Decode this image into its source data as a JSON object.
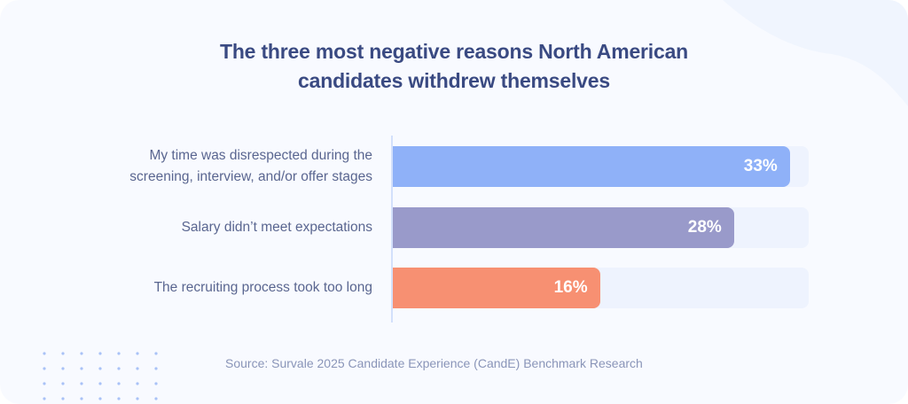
{
  "chart_data": {
    "type": "bar",
    "orientation": "horizontal",
    "title": "The three most negative reasons North American candidates withdrew themselves",
    "title_lines": [
      "The three most negative reasons North American",
      "candidates withdrew themselves"
    ],
    "categories": [
      "My time was disrespected during the screening, interview, and/or offer stages",
      "Salary didn’t meet expectations",
      "The recruiting process took too long"
    ],
    "category_lines": [
      [
        "My time was disrespected during the",
        "screening, interview, and/or offer stages"
      ],
      [
        "Salary didn’t meet expectations"
      ],
      [
        "The recruiting process took too long"
      ]
    ],
    "values": [
      33,
      28,
      16
    ],
    "value_labels": [
      "33%",
      "28%",
      "16%"
    ],
    "unit": "%",
    "colors": [
      "#8fb1f8",
      "#999aca",
      "#f79072"
    ],
    "track_color": "#eef3fe",
    "xlabel": "",
    "ylabel": "",
    "grid": false,
    "legend": "none"
  },
  "source": "Source: Survale 2025 Candidate Experience (CandE) Benchmark Research"
}
